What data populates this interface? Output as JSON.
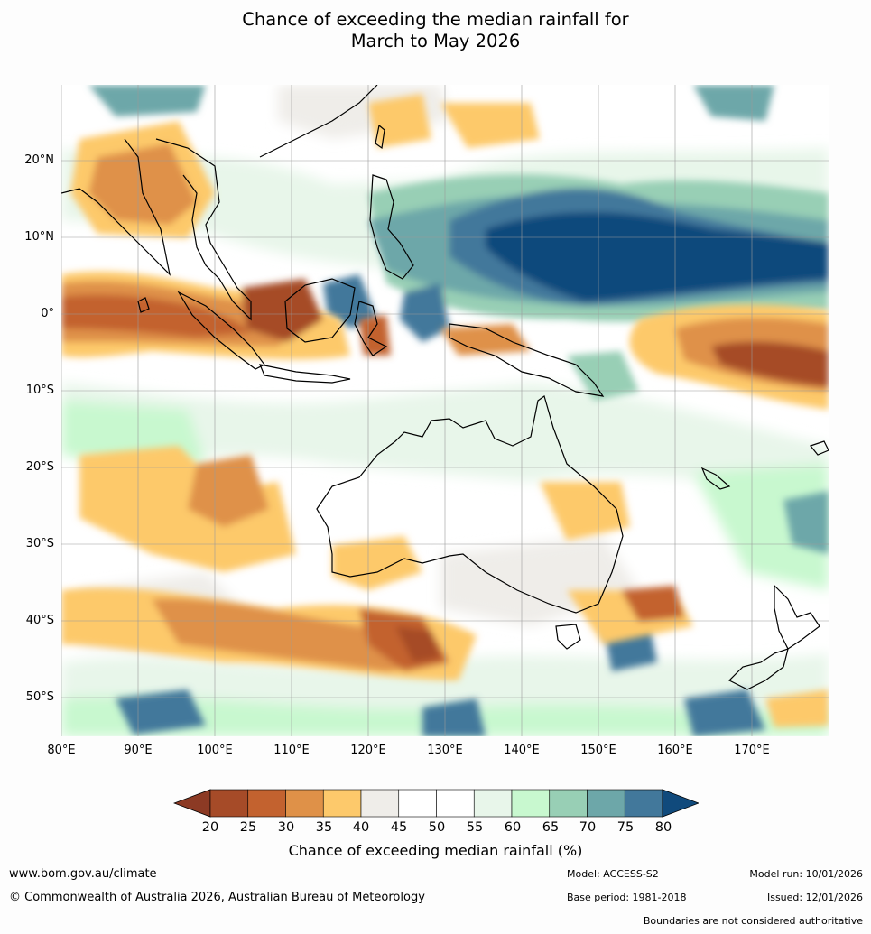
{
  "title_line1": "Chance of exceeding the median rainfall for",
  "title_line2": "March to May 2026",
  "lat_labels": [
    "20°N",
    "10°N",
    "0°",
    "10°S",
    "20°S",
    "30°S",
    "40°S",
    "50°S"
  ],
  "lon_labels": [
    "80°E",
    "90°E",
    "100°E",
    "110°E",
    "120°E",
    "130°E",
    "140°E",
    "150°E",
    "160°E",
    "170°E"
  ],
  "colorbar": {
    "ticks": [
      "20",
      "25",
      "30",
      "35",
      "40",
      "45",
      "50",
      "55",
      "60",
      "65",
      "70",
      "75",
      "80"
    ],
    "colors": [
      "#a64b28",
      "#c3622f",
      "#df9148",
      "#fdc96b",
      "#efede9",
      "#ffffff",
      "#ffffff",
      "#e8f6ea",
      "#c8f8cf",
      "#98cfb5",
      "#6da7a9",
      "#42789b"
    ],
    "under_color": "#8c3a24",
    "over_color": "#104a7c",
    "title": "Chance of exceeding median rainfall (%)"
  },
  "footer": {
    "website": "www.bom.gov.au/climate",
    "copyright": "© Commonwealth of Australia 2026, Australian Bureau of Meteorology",
    "model": "Model: ACCESS-S2",
    "base_period": "Base period: 1981-2018",
    "model_run": "Model run: 10/01/2026",
    "issued": "Issued: 12/01/2026",
    "disclaimer": "Boundaries are not considered authoritative"
  }
}
